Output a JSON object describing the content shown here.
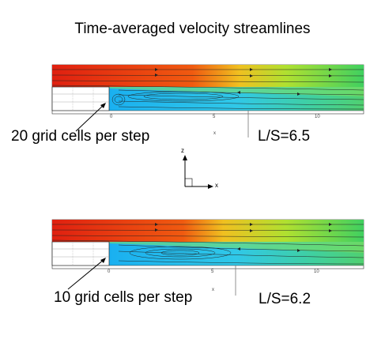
{
  "title": "Time-averaged velocity streamlines",
  "panels": [
    {
      "caption": "20 grid cells per step",
      "ratio": "L/S=6.5",
      "ticks": [
        "0",
        "5",
        "10"
      ],
      "x_axis_mark": "x"
    },
    {
      "caption": "10 grid cells per step",
      "ratio": "L/S=6.2",
      "ticks": [
        "0",
        "5",
        "10"
      ],
      "x_axis_mark": "x"
    }
  ],
  "axes_triad": {
    "z": "z",
    "x": "x"
  },
  "colors": {
    "high": "#e02010",
    "mid": "#f0c020",
    "low_mid": "#40d060",
    "low": "#20b0f0"
  }
}
